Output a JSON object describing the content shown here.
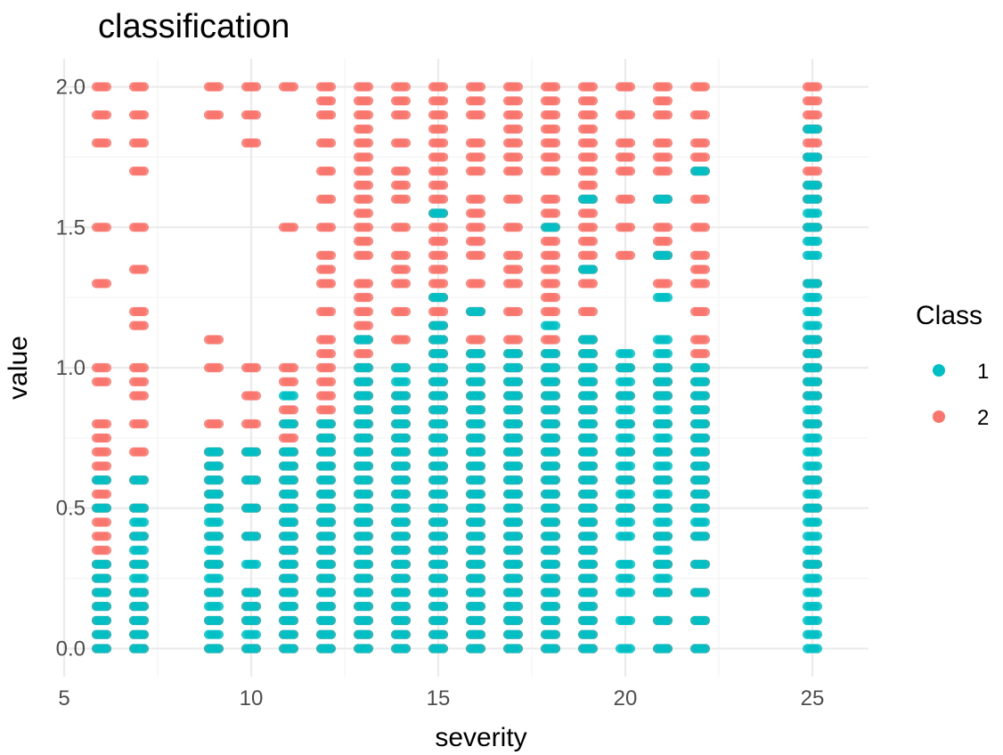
{
  "chart_data": {
    "type": "scatter",
    "title": "classification",
    "xlabel": "severity",
    "ylabel": "value",
    "xlim": [
      5,
      26.5
    ],
    "ylim": [
      -0.1,
      2.1
    ],
    "x_ticks": [
      5,
      10,
      15,
      20,
      25
    ],
    "x_tick_labels": [
      "5",
      "10",
      "15",
      "20",
      "25"
    ],
    "y_ticks": [
      0,
      0.5,
      1,
      1.5,
      2
    ],
    "y_tick_labels": [
      "0.0",
      "0.5",
      "1.0",
      "1.5",
      "2.0"
    ],
    "grid": true,
    "jitter": "horizontal",
    "legend": {
      "title": "Class",
      "position": "right"
    },
    "series": [
      {
        "name": "1",
        "color": "#00BFC4",
        "columns": [
          {
            "x": 6,
            "values": [
              0,
              0.05,
              0.1,
              0.15,
              0.2,
              0.25,
              0.3,
              0.5,
              0.6
            ]
          },
          {
            "x": 7,
            "values": [
              0,
              0.05,
              0.1,
              0.15,
              0.2,
              0.25,
              0.3,
              0.35,
              0.4,
              0.45,
              0.5,
              0.6
            ]
          },
          {
            "x": 9,
            "values": [
              0,
              0.05,
              0.1,
              0.15,
              0.2,
              0.25,
              0.3,
              0.35,
              0.4,
              0.45,
              0.5,
              0.55,
              0.6,
              0.65,
              0.7
            ]
          },
          {
            "x": 10,
            "values": [
              0,
              0.05,
              0.1,
              0.15,
              0.2,
              0.3,
              0.4,
              0.5,
              0.6,
              0.7
            ]
          },
          {
            "x": 11,
            "values": [
              0,
              0.05,
              0.1,
              0.15,
              0.2,
              0.25,
              0.3,
              0.35,
              0.4,
              0.45,
              0.5,
              0.55,
              0.6,
              0.65,
              0.7,
              0.8,
              0.9
            ]
          },
          {
            "x": 12,
            "values": [
              0,
              0.05,
              0.1,
              0.15,
              0.2,
              0.25,
              0.3,
              0.35,
              0.4,
              0.45,
              0.5,
              0.55,
              0.6,
              0.65,
              0.7,
              0.75,
              0.8
            ]
          },
          {
            "x": 13,
            "values": [
              0,
              0.05,
              0.1,
              0.15,
              0.2,
              0.25,
              0.3,
              0.35,
              0.4,
              0.45,
              0.5,
              0.55,
              0.6,
              0.65,
              0.7,
              0.75,
              0.8,
              0.85,
              0.9,
              0.95,
              1.0,
              1.1
            ]
          },
          {
            "x": 14,
            "values": [
              0,
              0.05,
              0.1,
              0.15,
              0.2,
              0.25,
              0.3,
              0.35,
              0.4,
              0.45,
              0.5,
              0.55,
              0.6,
              0.65,
              0.7,
              0.75,
              0.8,
              0.85,
              0.9,
              0.95,
              1.0
            ]
          },
          {
            "x": 15,
            "values": [
              0,
              0.05,
              0.1,
              0.15,
              0.2,
              0.25,
              0.3,
              0.35,
              0.4,
              0.45,
              0.5,
              0.55,
              0.6,
              0.65,
              0.7,
              0.75,
              0.8,
              0.85,
              0.9,
              0.95,
              1.0,
              1.05,
              1.1,
              1.15,
              1.25,
              1.55
            ]
          },
          {
            "x": 16,
            "values": [
              0,
              0.05,
              0.1,
              0.15,
              0.2,
              0.25,
              0.3,
              0.35,
              0.4,
              0.45,
              0.5,
              0.55,
              0.6,
              0.65,
              0.7,
              0.75,
              0.8,
              0.85,
              0.9,
              0.95,
              1.0,
              1.05,
              1.2
            ]
          },
          {
            "x": 17,
            "values": [
              0,
              0.05,
              0.1,
              0.15,
              0.2,
              0.25,
              0.3,
              0.35,
              0.4,
              0.45,
              0.5,
              0.55,
              0.6,
              0.65,
              0.7,
              0.75,
              0.8,
              0.85,
              0.9,
              0.95,
              1.0,
              1.05
            ]
          },
          {
            "x": 18,
            "values": [
              0,
              0.05,
              0.1,
              0.15,
              0.2,
              0.25,
              0.3,
              0.35,
              0.4,
              0.45,
              0.5,
              0.55,
              0.6,
              0.65,
              0.7,
              0.75,
              0.8,
              0.85,
              0.9,
              0.95,
              1.0,
              1.05,
              1.15,
              1.5
            ]
          },
          {
            "x": 19,
            "values": [
              0,
              0.05,
              0.1,
              0.15,
              0.2,
              0.25,
              0.3,
              0.35,
              0.4,
              0.45,
              0.5,
              0.55,
              0.6,
              0.65,
              0.7,
              0.75,
              0.8,
              0.85,
              0.9,
              0.95,
              1.0,
              1.05,
              1.1,
              1.35,
              1.6
            ]
          },
          {
            "x": 20,
            "values": [
              0,
              0.1,
              0.2,
              0.25,
              0.3,
              0.4,
              0.45,
              0.5,
              0.55,
              0.6,
              0.65,
              0.7,
              0.75,
              0.8,
              0.85,
              0.9,
              0.95,
              1.0,
              1.05
            ]
          },
          {
            "x": 21,
            "values": [
              0,
              0.1,
              0.2,
              0.25,
              0.3,
              0.35,
              0.4,
              0.45,
              0.5,
              0.55,
              0.6,
              0.65,
              0.7,
              0.75,
              0.8,
              0.85,
              0.9,
              0.95,
              1.0,
              1.05,
              1.1,
              1.25,
              1.4,
              1.6
            ]
          },
          {
            "x": 22,
            "values": [
              0,
              0.1,
              0.2,
              0.3,
              0.4,
              0.45,
              0.5,
              0.55,
              0.6,
              0.65,
              0.7,
              0.75,
              0.8,
              0.85,
              0.9,
              0.95,
              1.0,
              1.7
            ]
          },
          {
            "x": 25,
            "values": [
              0,
              0.05,
              0.1,
              0.15,
              0.2,
              0.25,
              0.3,
              0.35,
              0.4,
              0.45,
              0.5,
              0.55,
              0.6,
              0.65,
              0.7,
              0.75,
              0.8,
              0.85,
              0.9,
              0.95,
              1.0,
              1.05,
              1.1,
              1.15,
              1.2,
              1.25,
              1.3,
              1.4,
              1.45,
              1.5,
              1.55,
              1.6,
              1.65,
              1.75,
              1.85
            ]
          }
        ]
      },
      {
        "name": "2",
        "color": "#F8766D",
        "columns": [
          {
            "x": 6,
            "values": [
              0,
              0.05,
              0.1,
              0.15,
              0.2,
              0.25,
              0.3,
              0.35,
              0.4,
              0.45,
              0.5,
              0.55,
              0.6,
              0.65,
              0.7,
              0.75,
              0.8,
              0.95,
              1.0,
              1.3,
              1.5,
              1.8,
              1.9,
              2.0
            ]
          },
          {
            "x": 7,
            "values": [
              0,
              0.05,
              0.1,
              0.15,
              0.2,
              0.3,
              0.4,
              0.5,
              0.6,
              0.7,
              0.8,
              0.9,
              0.95,
              1.0,
              1.15,
              1.2,
              1.35,
              1.5,
              1.7,
              1.8,
              1.9,
              2.0
            ]
          },
          {
            "x": 9,
            "values": [
              0,
              0.1,
              0.2,
              0.3,
              0.4,
              0.5,
              0.55,
              0.6,
              0.65,
              0.7,
              0.8,
              1.0,
              1.1,
              1.9,
              2.0
            ]
          },
          {
            "x": 10,
            "values": [
              0,
              0.1,
              0.15,
              0.2,
              0.4,
              0.5,
              0.6,
              0.7,
              0.8,
              0.9,
              1.0,
              1.8,
              1.9,
              2.0
            ]
          },
          {
            "x": 11,
            "values": [
              0,
              0.05,
              0.1,
              0.15,
              0.2,
              0.25,
              0.3,
              0.35,
              0.4,
              0.45,
              0.5,
              0.55,
              0.6,
              0.65,
              0.7,
              0.75,
              0.8,
              0.85,
              0.95,
              1.0,
              1.5,
              2.0
            ]
          },
          {
            "x": 12,
            "values": [
              0,
              0.05,
              0.1,
              0.15,
              0.2,
              0.25,
              0.3,
              0.35,
              0.4,
              0.45,
              0.5,
              0.55,
              0.6,
              0.65,
              0.7,
              0.75,
              0.8,
              0.85,
              0.9,
              0.95,
              1.0,
              1.05,
              1.1,
              1.2,
              1.3,
              1.35,
              1.4,
              1.5,
              1.6,
              1.7,
              1.8,
              1.9,
              1.95,
              2.0
            ]
          },
          {
            "x": 13,
            "values": [
              0,
              0.05,
              0.1,
              0.15,
              0.2,
              0.25,
              0.3,
              0.35,
              0.4,
              0.45,
              0.5,
              0.55,
              0.6,
              0.65,
              0.7,
              0.75,
              0.8,
              0.85,
              0.9,
              0.95,
              1.0,
              1.05,
              1.1,
              1.15,
              1.2,
              1.25,
              1.3,
              1.4,
              1.45,
              1.5,
              1.55,
              1.6,
              1.65,
              1.7,
              1.75,
              1.8,
              1.85,
              1.9,
              1.95,
              2.0
            ]
          },
          {
            "x": 14,
            "values": [
              0,
              0.05,
              0.1,
              0.15,
              0.2,
              0.25,
              0.3,
              0.35,
              0.4,
              0.45,
              0.5,
              0.55,
              0.6,
              0.65,
              0.7,
              0.75,
              0.8,
              0.85,
              0.9,
              1.0,
              1.1,
              1.2,
              1.3,
              1.35,
              1.4,
              1.5,
              1.6,
              1.65,
              1.7,
              1.8,
              1.9,
              1.95,
              2.0
            ]
          },
          {
            "x": 15,
            "values": [
              0,
              0.05,
              0.1,
              0.15,
              0.2,
              0.25,
              0.3,
              0.35,
              0.4,
              0.45,
              0.5,
              0.55,
              0.6,
              0.65,
              0.7,
              0.75,
              0.8,
              0.85,
              0.9,
              0.95,
              1.0,
              1.05,
              1.1,
              1.15,
              1.2,
              1.25,
              1.3,
              1.35,
              1.4,
              1.45,
              1.5,
              1.55,
              1.6,
              1.65,
              1.7,
              1.75,
              1.8,
              1.85,
              1.9,
              1.95,
              2.0
            ]
          },
          {
            "x": 16,
            "values": [
              0,
              0.05,
              0.1,
              0.15,
              0.2,
              0.25,
              0.3,
              0.35,
              0.4,
              0.45,
              0.5,
              0.55,
              0.6,
              0.65,
              0.7,
              0.75,
              0.8,
              0.85,
              0.9,
              0.95,
              1.0,
              1.05,
              1.1,
              1.2,
              1.3,
              1.4,
              1.45,
              1.5,
              1.55,
              1.6,
              1.7,
              1.75,
              1.8,
              1.9,
              1.95,
              2.0
            ]
          },
          {
            "x": 17,
            "values": [
              0,
              0.05,
              0.1,
              0.15,
              0.2,
              0.25,
              0.3,
              0.35,
              0.4,
              0.45,
              0.5,
              0.55,
              0.6,
              0.65,
              0.7,
              0.75,
              0.8,
              0.85,
              0.9,
              0.95,
              1.0,
              1.05,
              1.1,
              1.2,
              1.3,
              1.35,
              1.4,
              1.5,
              1.6,
              1.7,
              1.75,
              1.8,
              1.85,
              1.9,
              1.95,
              2.0
            ]
          },
          {
            "x": 18,
            "values": [
              0,
              0.05,
              0.1,
              0.15,
              0.2,
              0.25,
              0.3,
              0.35,
              0.4,
              0.45,
              0.5,
              0.55,
              0.6,
              0.65,
              0.7,
              0.75,
              0.8,
              0.85,
              0.9,
              0.95,
              1.0,
              1.05,
              1.1,
              1.2,
              1.25,
              1.3,
              1.35,
              1.4,
              1.45,
              1.5,
              1.55,
              1.6,
              1.7,
              1.75,
              1.8,
              1.85,
              1.9,
              1.95,
              2.0
            ]
          },
          {
            "x": 19,
            "values": [
              0,
              0.05,
              0.1,
              0.15,
              0.2,
              0.25,
              0.3,
              0.35,
              0.4,
              0.45,
              0.5,
              0.55,
              0.6,
              0.65,
              0.7,
              0.75,
              0.8,
              0.85,
              0.9,
              0.95,
              1.0,
              1.05,
              1.1,
              1.2,
              1.3,
              1.35,
              1.4,
              1.45,
              1.5,
              1.55,
              1.6,
              1.65,
              1.7,
              1.75,
              1.8,
              1.85,
              1.9,
              1.95,
              2.0
            ]
          },
          {
            "x": 20,
            "values": [
              0.5,
              0.6,
              0.7,
              0.8,
              0.9,
              1.0,
              1.4,
              1.5,
              1.6,
              1.7,
              1.75,
              1.8,
              1.9,
              2.0
            ]
          },
          {
            "x": 21,
            "values": [
              0,
              0.1,
              0.2,
              0.3,
              0.4,
              0.5,
              0.6,
              0.7,
              0.8,
              0.9,
              0.95,
              1.0,
              1.3,
              1.4,
              1.45,
              1.5,
              1.6,
              1.7,
              1.75,
              1.8,
              1.9,
              1.95,
              2.0
            ]
          },
          {
            "x": 22,
            "values": [
              0,
              0.1,
              0.2,
              0.3,
              0.4,
              0.5,
              0.55,
              0.6,
              0.65,
              0.7,
              0.75,
              0.8,
              0.85,
              0.9,
              0.95,
              1.0,
              1.05,
              1.1,
              1.2,
              1.3,
              1.35,
              1.4,
              1.5,
              1.6,
              1.7,
              1.75,
              1.8,
              1.9,
              2.0
            ]
          },
          {
            "x": 25,
            "values": [
              0.3,
              0.5,
              0.6,
              0.8,
              0.9,
              0.95,
              1.0,
              1.05,
              1.1,
              1.3,
              1.5,
              1.6,
              1.65,
              1.7,
              1.75,
              1.8,
              1.85,
              1.9,
              1.95,
              2.0
            ]
          }
        ]
      }
    ]
  }
}
